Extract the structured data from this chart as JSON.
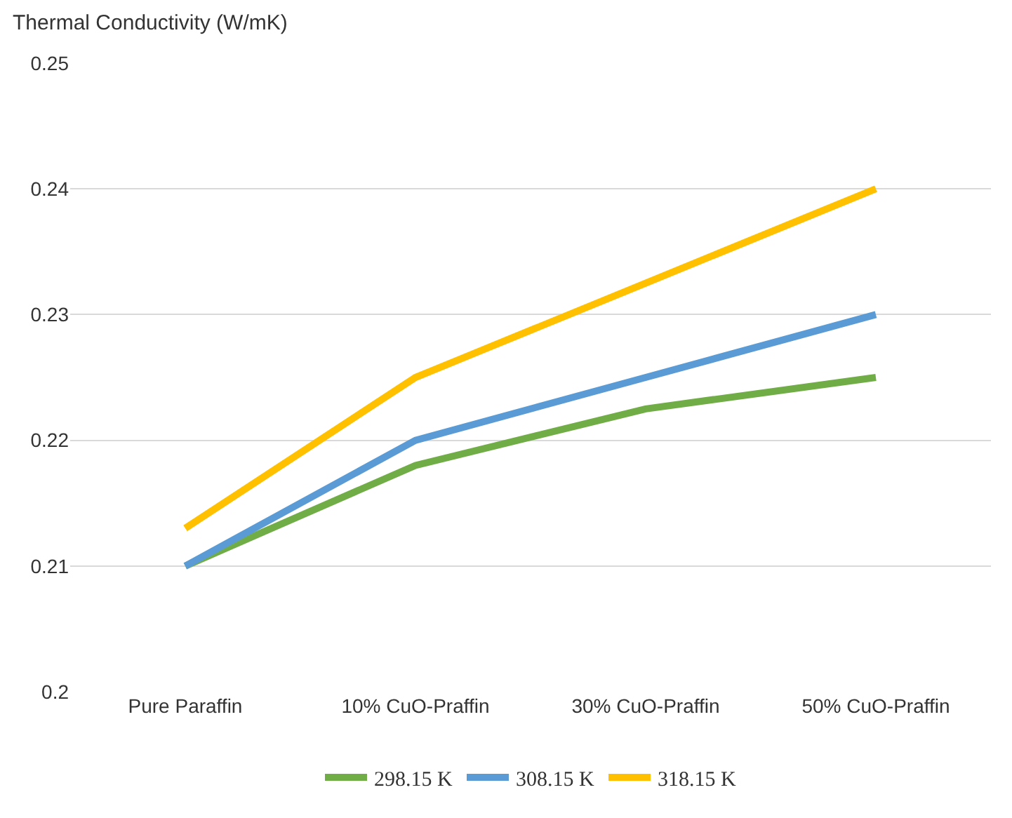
{
  "chart_data": {
    "type": "line",
    "ylabel": "Thermal Conductivity (W/mK)",
    "categories": [
      "Pure Paraffin",
      "10% CuO-Praffin",
      "30% CuO-Praffin",
      "50% CuO-Praffin"
    ],
    "series": [
      {
        "name": "298.15 K",
        "color": "#70ad47",
        "values": [
          0.21,
          0.218,
          0.2225,
          0.225
        ]
      },
      {
        "name": "308.15 K",
        "color": "#5b9bd5",
        "values": [
          0.21,
          0.22,
          0.225,
          0.23
        ]
      },
      {
        "name": "318.15 K",
        "color": "#ffc000",
        "values": [
          0.213,
          0.225,
          0.2325,
          0.24
        ]
      }
    ],
    "ylim": [
      0.2,
      0.25
    ],
    "yticks": [
      0.2,
      0.21,
      0.22,
      0.23,
      0.24,
      0.25
    ],
    "grid": "y",
    "legend": "bottom",
    "marker": "none",
    "line_style": "solid"
  }
}
